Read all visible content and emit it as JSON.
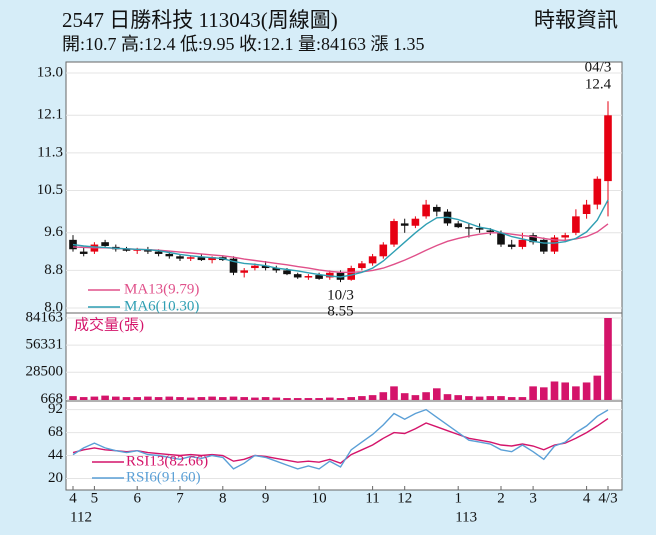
{
  "chart_data": [
    {
      "type": "candlestick",
      "title": "2547  日勝科技 113043(周線圖)",
      "source": "時報資訊",
      "subtitle": "開:10.7 高:12.4 低:9.95 收:12.1 量:84163 漲 1.35",
      "up_color": "#e60012",
      "down_color": "#111111",
      "open": [
        9.45,
        9.2,
        9.2,
        9.4,
        9.3,
        9.25,
        9.22,
        9.25,
        9.2,
        9.15,
        9.1,
        9.05,
        9.08,
        9.02,
        9.08,
        9.05,
        8.75,
        8.85,
        8.9,
        8.85,
        8.8,
        8.72,
        8.65,
        8.7,
        8.65,
        8.75,
        8.6,
        8.85,
        8.95,
        9.1,
        9.35,
        9.8,
        9.75,
        9.95,
        10.15,
        10.05,
        9.8,
        9.72,
        9.7,
        9.65,
        9.6,
        9.35,
        9.3,
        9.55,
        9.45,
        9.2,
        9.5,
        9.6,
        10.0,
        10.2,
        10.7
      ],
      "high": [
        9.55,
        9.3,
        9.4,
        9.45,
        9.35,
        9.3,
        9.28,
        9.3,
        9.25,
        9.2,
        9.15,
        9.12,
        9.15,
        9.1,
        9.12,
        9.1,
        8.85,
        8.95,
        9.0,
        8.9,
        8.85,
        8.75,
        8.72,
        8.75,
        8.8,
        8.8,
        8.9,
        9.0,
        9.15,
        9.4,
        9.9,
        9.9,
        9.95,
        10.3,
        10.2,
        10.1,
        9.85,
        9.8,
        9.8,
        9.7,
        9.65,
        9.45,
        9.6,
        9.6,
        9.5,
        9.55,
        9.6,
        10.1,
        10.3,
        10.8,
        12.4
      ],
      "low": [
        9.2,
        9.1,
        9.15,
        9.3,
        9.2,
        9.2,
        9.15,
        9.15,
        9.1,
        9.05,
        9.0,
        9.0,
        9.0,
        8.95,
        9.0,
        8.7,
        8.65,
        8.8,
        8.8,
        8.75,
        8.7,
        8.62,
        8.6,
        8.6,
        8.6,
        8.55,
        8.58,
        8.8,
        8.9,
        9.05,
        9.3,
        9.6,
        9.7,
        9.9,
        9.95,
        9.75,
        9.7,
        9.5,
        9.6,
        9.55,
        9.3,
        9.25,
        9.25,
        9.35,
        9.15,
        9.15,
        9.4,
        9.55,
        9.9,
        10.1,
        9.95
      ],
      "close": [
        9.25,
        9.15,
        9.35,
        9.32,
        9.25,
        9.22,
        9.25,
        9.2,
        9.15,
        9.1,
        9.05,
        9.08,
        9.02,
        9.08,
        9.02,
        8.75,
        8.8,
        8.9,
        8.85,
        8.8,
        8.72,
        8.65,
        8.68,
        8.62,
        8.75,
        8.6,
        8.85,
        8.95,
        9.1,
        9.35,
        9.85,
        9.75,
        9.9,
        10.2,
        10.05,
        9.8,
        9.72,
        9.7,
        9.68,
        9.62,
        9.35,
        9.3,
        9.45,
        9.4,
        9.2,
        9.5,
        9.55,
        9.95,
        10.2,
        10.75,
        12.1
      ],
      "series": [
        {
          "name": "MA13(9.79)",
          "color": "#e0508a",
          "values": [
            9.3,
            9.29,
            9.28,
            9.28,
            9.27,
            9.26,
            9.25,
            9.24,
            9.23,
            9.21,
            9.19,
            9.17,
            9.15,
            9.13,
            9.11,
            9.08,
            9.04,
            9.01,
            8.98,
            8.95,
            8.92,
            8.88,
            8.85,
            8.81,
            8.78,
            8.76,
            8.76,
            8.77,
            8.8,
            8.85,
            8.93,
            9.02,
            9.12,
            9.23,
            9.33,
            9.42,
            9.48,
            9.53,
            9.57,
            9.6,
            9.6,
            9.57,
            9.54,
            9.52,
            9.48,
            9.45,
            9.44,
            9.47,
            9.52,
            9.62,
            9.79
          ]
        },
        {
          "name": "MA6(10.30)",
          "color": "#2f9fb3",
          "values": [
            9.35,
            9.32,
            9.3,
            9.29,
            9.27,
            9.26,
            9.25,
            9.24,
            9.22,
            9.18,
            9.14,
            9.11,
            9.09,
            9.07,
            9.05,
            8.99,
            8.95,
            8.93,
            8.9,
            8.85,
            8.82,
            8.79,
            8.75,
            8.71,
            8.68,
            8.66,
            8.7,
            8.76,
            8.85,
            9.0,
            9.2,
            9.4,
            9.6,
            9.78,
            9.92,
            9.93,
            9.88,
            9.8,
            9.72,
            9.68,
            9.6,
            9.52,
            9.47,
            9.42,
            9.38,
            9.38,
            9.41,
            9.48,
            9.62,
            9.87,
            10.3
          ]
        }
      ],
      "low_label": {
        "date": "10/3",
        "value": 8.55
      },
      "high_label": {
        "date": "04/3",
        "value": 12.4
      },
      "ylim": [
        8,
        13
      ],
      "yticks": [
        {
          "value": 8,
          "label": "8.0"
        },
        8.8,
        9.6,
        10.5,
        11.3,
        12.1,
        {
          "value": 13,
          "label": "13.0"
        }
      ],
      "grid": true
    },
    {
      "type": "bar",
      "series": [
        {
          "name": "成交量(張)",
          "color": "#d4146a",
          "values": [
            4000,
            3000,
            3500,
            4500,
            3500,
            3000,
            3000,
            3500,
            3000,
            3500,
            3000,
            2500,
            3000,
            3500,
            3000,
            3500,
            3000,
            2500,
            3000,
            2500,
            2000,
            2000,
            2000,
            2000,
            2500,
            2000,
            3000,
            4000,
            5000,
            8000,
            14000,
            7000,
            5000,
            8000,
            12000,
            6000,
            5000,
            4000,
            3500,
            4000,
            4000,
            3000,
            3000,
            14000,
            13000,
            19000,
            18000,
            14000,
            18000,
            25000,
            84163
          ]
        }
      ],
      "ylim": [
        0,
        84163
      ],
      "yticks": [
        668,
        28500,
        56331,
        84163
      ],
      "grid": true
    },
    {
      "type": "line",
      "categories": [
        "4",
        null,
        "5",
        null,
        null,
        null,
        "6",
        null,
        null,
        null,
        "7",
        null,
        null,
        null,
        "8",
        null,
        null,
        null,
        "9",
        null,
        null,
        null,
        null,
        "10",
        null,
        null,
        null,
        null,
        "11",
        null,
        null,
        "12",
        null,
        null,
        null,
        null,
        "1",
        null,
        null,
        null,
        "2",
        null,
        null,
        "3",
        null,
        null,
        null,
        null,
        "4",
        null,
        "4/3"
      ],
      "years": [
        "112",
        null,
        null,
        null,
        null,
        null,
        null,
        null,
        null,
        null,
        null,
        null,
        null,
        null,
        null,
        null,
        null,
        null,
        null,
        null,
        null,
        null,
        null,
        null,
        null,
        null,
        null,
        null,
        null,
        null,
        null,
        null,
        null,
        null,
        null,
        null,
        "113",
        null,
        null,
        null,
        null,
        null,
        null,
        null,
        null,
        null,
        null,
        null,
        null,
        null,
        null
      ],
      "series": [
        {
          "name": "RSI13(82.66)",
          "color": "#d4146a",
          "values": [
            47,
            50,
            52,
            50,
            49,
            48,
            49,
            47,
            46,
            45,
            44,
            45,
            44,
            45,
            44,
            38,
            40,
            44,
            43,
            41,
            39,
            37,
            38,
            37,
            40,
            36,
            45,
            50,
            55,
            62,
            68,
            67,
            72,
            78,
            74,
            70,
            66,
            62,
            60,
            58,
            55,
            54,
            56,
            54,
            50,
            55,
            57,
            62,
            68,
            75,
            82.66
          ]
        },
        {
          "name": "RSI6(91.60)",
          "color": "#5a9fd6",
          "values": [
            45,
            52,
            57,
            52,
            49,
            47,
            49,
            45,
            44,
            42,
            40,
            43,
            41,
            44,
            42,
            30,
            36,
            44,
            42,
            38,
            34,
            30,
            33,
            30,
            38,
            32,
            50,
            58,
            66,
            76,
            88,
            82,
            88,
            92,
            84,
            76,
            68,
            60,
            58,
            56,
            50,
            48,
            55,
            48,
            40,
            54,
            58,
            68,
            75,
            85,
            91.6
          ]
        }
      ],
      "ylim": [
        10,
        100
      ],
      "yticks": [
        20,
        44,
        68,
        92
      ],
      "grid": true
    }
  ]
}
